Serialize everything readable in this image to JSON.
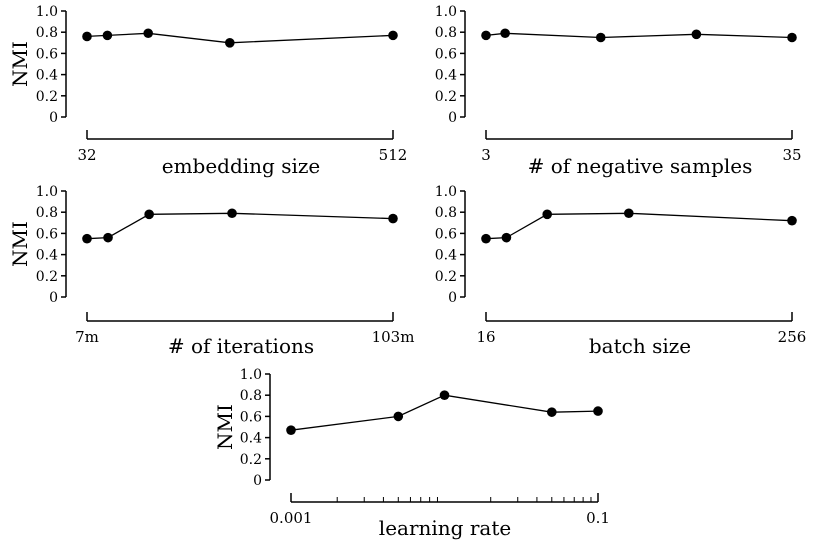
{
  "chart_data": [
    {
      "type": "line",
      "xlabel": "embedding size",
      "ylabel": "NMI",
      "x_scale": "linear",
      "x_tick_labels": [
        "32",
        "512"
      ],
      "x_range": [
        32,
        512
      ],
      "ylim": [
        0,
        1.0
      ],
      "y_ticks": [
        "0",
        "0.2",
        "0.4",
        "0.6",
        "0.8",
        "1.0"
      ],
      "x": [
        32,
        64,
        128,
        256,
        512
      ],
      "y": [
        0.76,
        0.77,
        0.79,
        0.7,
        0.77
      ]
    },
    {
      "type": "line",
      "xlabel": "# of negative samples",
      "ylabel": "",
      "x_scale": "linear",
      "x_tick_labels": [
        "3",
        "35"
      ],
      "x_range": [
        3,
        35
      ],
      "ylim": [
        0,
        1.0
      ],
      "y_ticks": [
        "0",
        "0.2",
        "0.4",
        "0.6",
        "0.8",
        "1.0"
      ],
      "x": [
        3,
        5,
        15,
        25,
        35
      ],
      "y": [
        0.77,
        0.79,
        0.75,
        0.78,
        0.75
      ]
    },
    {
      "type": "line",
      "xlabel": "# of iterations",
      "ylabel": "NMI",
      "x_scale": "linear",
      "x_tick_labels": [
        "7m",
        "103m"
      ],
      "x_range": [
        7,
        103
      ],
      "ylim": [
        0,
        1.0
      ],
      "y_ticks": [
        "0",
        "0.2",
        "0.4",
        "0.6",
        "0.8",
        "1.0"
      ],
      "x": [
        7,
        13.6,
        26.5,
        52.5,
        103
      ],
      "y": [
        0.55,
        0.56,
        0.78,
        0.79,
        0.74
      ]
    },
    {
      "type": "line",
      "xlabel": "batch size",
      "ylabel": "",
      "x_scale": "linear",
      "x_tick_labels": [
        "16",
        "256"
      ],
      "x_range": [
        16,
        256
      ],
      "ylim": [
        0,
        1.0
      ],
      "y_ticks": [
        "0",
        "0.2",
        "0.4",
        "0.6",
        "0.8",
        "1.0"
      ],
      "x": [
        16,
        32,
        64,
        128,
        256
      ],
      "y": [
        0.55,
        0.56,
        0.78,
        0.79,
        0.72
      ]
    },
    {
      "type": "line",
      "xlabel": "learning rate",
      "ylabel": "NMI",
      "x_scale": "log",
      "x_tick_labels": [
        "0.001",
        "0.1"
      ],
      "x_range": [
        0.001,
        0.1
      ],
      "ylim": [
        0,
        1.0
      ],
      "y_ticks": [
        "0",
        "0.2",
        "0.4",
        "0.6",
        "0.8",
        "1.0"
      ],
      "x": [
        0.001,
        0.005,
        0.01,
        0.05,
        0.1
      ],
      "y": [
        0.47,
        0.6,
        0.8,
        0.64,
        0.65
      ]
    }
  ]
}
